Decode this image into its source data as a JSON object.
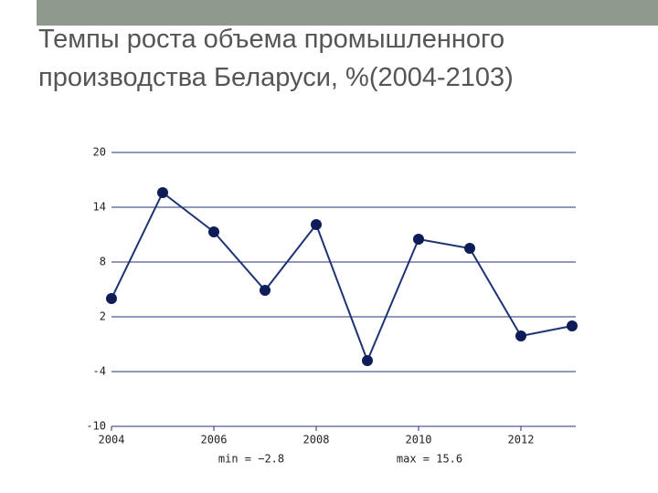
{
  "chart_data": {
    "type": "line",
    "title": "Темпы роста объема промышленного производства Беларуси, %(2004-2103)",
    "x": [
      2004,
      2005,
      2006,
      2007,
      2008,
      2009,
      2010,
      2011,
      2012,
      2013
    ],
    "series": [
      {
        "color": "#1f3374",
        "values": [
          4.0,
          15.6,
          11.3,
          4.9,
          12.1,
          -2.8,
          10.5,
          9.5,
          -0.1,
          1.0
        ]
      }
    ],
    "xlim": [
      2004,
      2013
    ],
    "xticks": [
      2004,
      2006,
      2008,
      2010,
      2012
    ],
    "ylim": [
      -10,
      20
    ],
    "yticks": [
      -10,
      -4,
      2,
      8,
      14,
      20
    ],
    "grid": true,
    "annotations": [
      "min = −2.8",
      "max = 15.6"
    ]
  }
}
